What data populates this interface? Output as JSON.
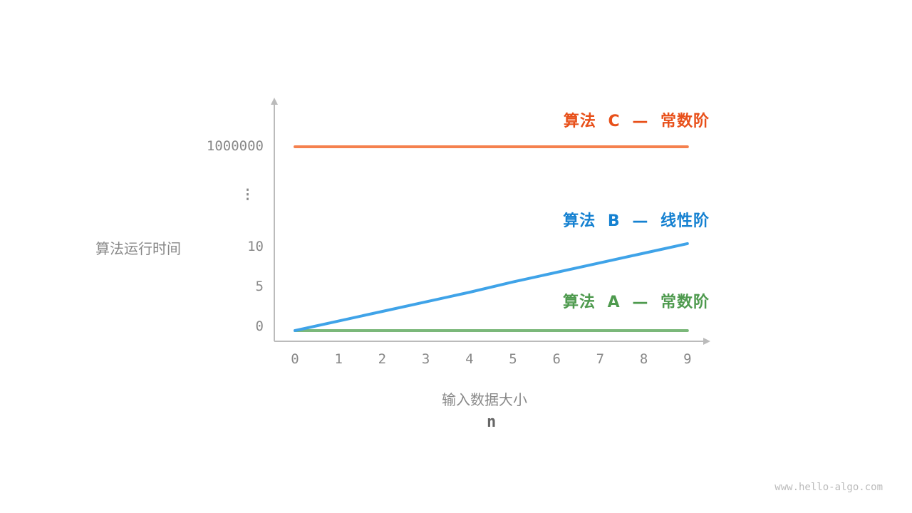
{
  "chart_data": {
    "type": "line",
    "xlabel": "输入数据大小",
    "xlabel_symbol": "n",
    "ylabel": "算法运行时间",
    "x": [
      0,
      1,
      2,
      3,
      4,
      5,
      6,
      7,
      8,
      9
    ],
    "x_tick_labels": [
      "0",
      "1",
      "2",
      "3",
      "4",
      "5",
      "6",
      "7",
      "8",
      "9"
    ],
    "y_tick_labels": [
      "0",
      "5",
      "10",
      "⋮",
      "1000000"
    ],
    "y_axis_broken": true,
    "grid": false,
    "series": [
      {
        "name": "算法 A — 常数阶",
        "color": "#7bb87a",
        "label_color": "#4e9a4e",
        "values": [
          0,
          0,
          0,
          0,
          0,
          0,
          0,
          0,
          0,
          0
        ]
      },
      {
        "name": "算法 B — 线性阶",
        "color": "#3fa3e8",
        "label_color": "#1581d1",
        "values": [
          0,
          1.2,
          2.4,
          3.6,
          4.8,
          6.1,
          7.3,
          8.5,
          9.7,
          10.9
        ]
      },
      {
        "name": "算法 C — 常数阶",
        "color": "#f5814e",
        "label_color": "#e8501a",
        "values": [
          1000000,
          1000000,
          1000000,
          1000000,
          1000000,
          1000000,
          1000000,
          1000000,
          1000000,
          1000000
        ]
      }
    ]
  },
  "watermark": "www.hello-algo.com"
}
